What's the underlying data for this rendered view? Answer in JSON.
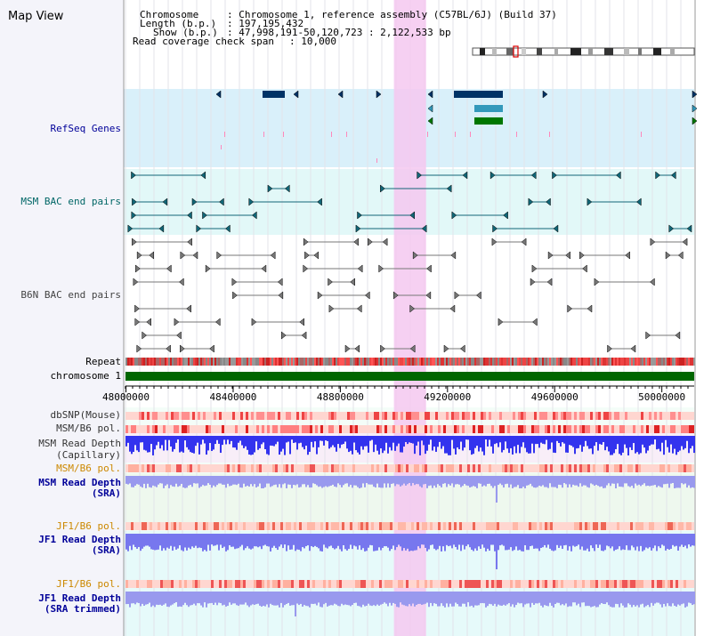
{
  "header": {
    "title": "Map View",
    "chromosome_label": "Chromosome",
    "chromosome_value": ": Chromosome 1, reference assembly (C57BL/6J) (Build 37)",
    "length_label": "Length (b.p.)",
    "length_value": ": 197,195,432",
    "show_label": "Show (b.p.)",
    "show_value": ": 47,998,191-50,120,723 : 2,122,533 bp",
    "coverage_label": "Read coverage check span",
    "coverage_value": ": 10,000"
  },
  "tracks": {
    "refseq": "RefSeq Genes",
    "msm_bac": "MSM BAC end pairs",
    "b6n_bac": "B6N BAC end pairs",
    "repeat": "Repeat",
    "chromosome": "chromosome 1",
    "dbsnp": "dbSNP(Mouse)",
    "msm_b6_pol": "MSM/B6 pol.",
    "msm_read_depth_cap_1": "MSM Read Depth",
    "msm_read_depth_cap_2": "(Capillary)",
    "msm_b6_pol_2": "MSM/B6 pol.",
    "msm_read_depth_sra_1": "MSM Read Depth",
    "msm_read_depth_sra_2": "(SRA)",
    "jf1_b6_pol": "JF1/B6 pol.",
    "jf1_read_depth_sra_1": "JF1 Read Depth",
    "jf1_read_depth_sra_2": "(SRA)",
    "jf1_b6_pol_2": "JF1/B6 pol.",
    "jf1_read_depth_trim_1": "JF1 Read Depth",
    "jf1_read_depth_trim_2": "(SRA trimmed)"
  },
  "axis": {
    "ticks": [
      "48000000",
      "48400000",
      "48800000",
      "49200000",
      "49600000",
      "50000000"
    ],
    "tick_values": [
      48000000,
      48400000,
      48800000,
      49200000,
      49600000,
      50000000
    ],
    "range": [
      47998191,
      50120723
    ]
  },
  "highlight": {
    "start": 49000000,
    "end": 49120000
  },
  "colors": {
    "refseq_label": "#000099",
    "msm_label": "#006666",
    "b6n_label": "#555555",
    "pol_orange": "#cc8800",
    "depth_blue": "#000099",
    "highlight": "#f5c8f0",
    "chrom_green": "#006600",
    "gene_navy": "#003366",
    "gene_teal": "#3399bb",
    "gene_green": "#007700"
  }
}
